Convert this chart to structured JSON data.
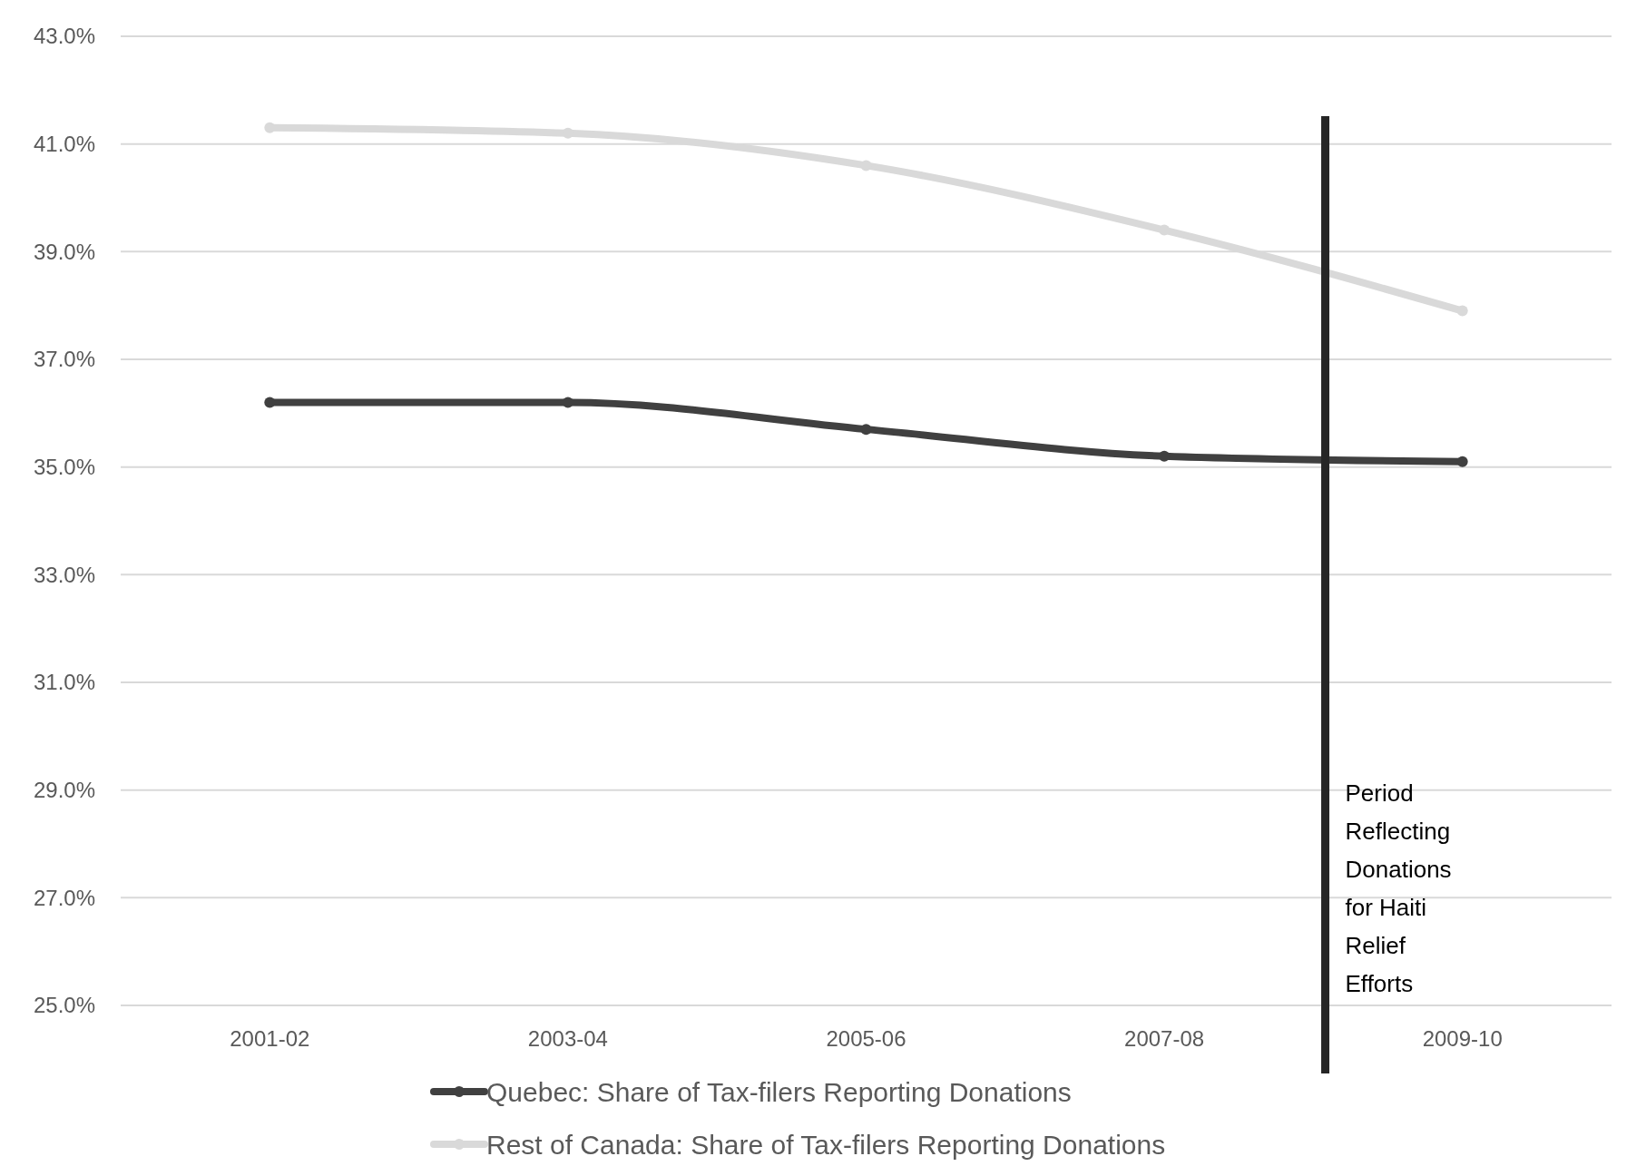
{
  "chart_data": {
    "type": "line",
    "categories": [
      "2001-02",
      "2003-04",
      "2005-06",
      "2007-08",
      "2009-10"
    ],
    "series": [
      {
        "name": "Quebec: Share of Tax-filers Reporting Donations",
        "color": "#404040",
        "values": [
          36.2,
          36.2,
          35.7,
          35.2,
          35.1
        ]
      },
      {
        "name": "Rest of Canada: Share of Tax-filers Reporting Donations",
        "color": "#d9d9d9",
        "values": [
          41.3,
          41.2,
          40.6,
          39.4,
          37.9
        ]
      }
    ],
    "ylim": [
      25,
      43
    ],
    "yticks": [
      {
        "value": 25,
        "label": "25.0%"
      },
      {
        "value": 27,
        "label": "27.0%"
      },
      {
        "value": 29,
        "label": "29.0%"
      },
      {
        "value": 31,
        "label": "31.0%"
      },
      {
        "value": 33,
        "label": "33.0%"
      },
      {
        "value": 35,
        "label": "35.0%"
      },
      {
        "value": 37,
        "label": "37.0%"
      },
      {
        "value": 39,
        "label": "39.0%"
      },
      {
        "value": 41,
        "label": "41.0%"
      },
      {
        "value": 43,
        "label": "43.0%"
      }
    ],
    "grid": "y",
    "legend": "bottom",
    "marker": "circle",
    "line_style": "solid",
    "ref_lines": [
      {
        "axis": "x",
        "value": "2009-10",
        "label": "Period Reflecting Donations for Haiti Relief Efforts",
        "color": "#262626"
      }
    ]
  }
}
